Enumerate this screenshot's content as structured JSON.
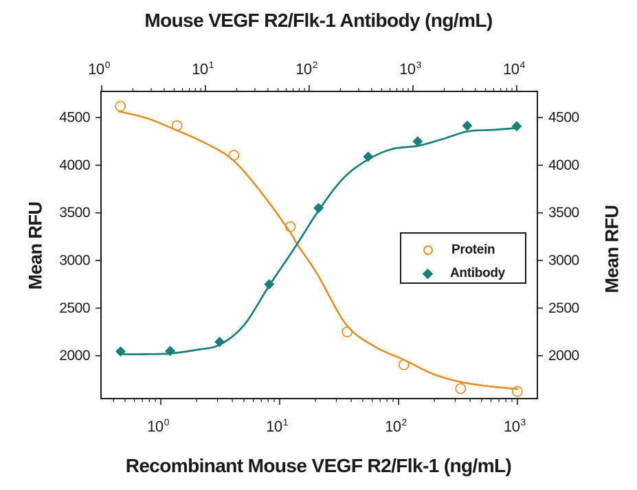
{
  "page": {
    "background": "#ffffff"
  },
  "chart_data": {
    "type": "scatter",
    "title_top": "Mouse VEGF R2/Flk-1 Antibody (ng/mL)",
    "title_bottom": "Recombinant Mouse VEGF R2/Flk-1 (ng/mL)",
    "ylabel_left": "Mean RFU",
    "ylabel_right": "Mean RFU",
    "grid": false,
    "legend_position": "middle-right",
    "colors": {
      "protein": "#E0912B",
      "antibody": "#1A7E78",
      "axis": "#1A1A1A"
    },
    "y_axis": {
      "min": 1550,
      "max": 4775,
      "ticks": [
        2000,
        2500,
        3000,
        3500,
        4000,
        4500
      ]
    },
    "x_bottom_axis": {
      "scale": "log",
      "min_log": -0.503,
      "max_log": 3.168,
      "decade_exponents": [
        0,
        1,
        2,
        3
      ],
      "base_label": "10"
    },
    "x_top_axis": {
      "scale": "log",
      "min_log": -0.0066,
      "max_log": 4.199,
      "decade_exponents": [
        0,
        1,
        2,
        3,
        4
      ],
      "base_label": "10"
    },
    "series": [
      {
        "name": "Protein",
        "axis": "bottom",
        "marker": "open-circle",
        "color": "#E0912B",
        "points": [
          [
            0.457,
            4620
          ],
          [
            1.37,
            4415
          ],
          [
            4.12,
            4105
          ],
          [
            12.3,
            3355
          ],
          [
            37,
            2250
          ],
          [
            111,
            1905
          ],
          [
            333,
            1655
          ],
          [
            1000,
            1625
          ]
        ],
        "curve": [
          [
            0.444,
            4565
          ],
          [
            0.78,
            4490
          ],
          [
            1.34,
            4370
          ],
          [
            2.3,
            4240
          ],
          [
            4.0,
            4060
          ],
          [
            7.0,
            3715
          ],
          [
            12.2,
            3300
          ],
          [
            14.1,
            3168
          ],
          [
            20.9,
            2850
          ],
          [
            36.3,
            2327
          ],
          [
            62.9,
            2097
          ],
          [
            110,
            1960
          ],
          [
            195,
            1809
          ],
          [
            336,
            1723
          ],
          [
            580,
            1679
          ],
          [
            1000,
            1650
          ]
        ]
      },
      {
        "name": "Antibody",
        "axis": "top",
        "marker": "filled-diamond",
        "color": "#1A7E78",
        "points": [
          [
            1.52,
            2045
          ],
          [
            4.57,
            2050
          ],
          [
            13.7,
            2145
          ],
          [
            41.2,
            2750
          ],
          [
            123,
            3550
          ],
          [
            370,
            4090
          ],
          [
            1111,
            4250
          ],
          [
            3333,
            4415
          ],
          [
            10000,
            4410
          ]
        ],
        "curve": [
          [
            1.49,
            2016
          ],
          [
            2.57,
            2016
          ],
          [
            4.52,
            2023
          ],
          [
            8.7,
            2066
          ],
          [
            13.8,
            2116
          ],
          [
            23.5,
            2320
          ],
          [
            40.7,
            2727
          ],
          [
            76,
            3168
          ],
          [
            122,
            3518
          ],
          [
            213,
            3863
          ],
          [
            371,
            4061
          ],
          [
            625,
            4169
          ],
          [
            1133,
            4205
          ],
          [
            1970,
            4277
          ],
          [
            3387,
            4356
          ],
          [
            5900,
            4371
          ],
          [
            10160,
            4392
          ]
        ]
      }
    ],
    "legend": {
      "items": [
        {
          "label": "Protein"
        },
        {
          "label": "Antibody"
        }
      ]
    }
  }
}
